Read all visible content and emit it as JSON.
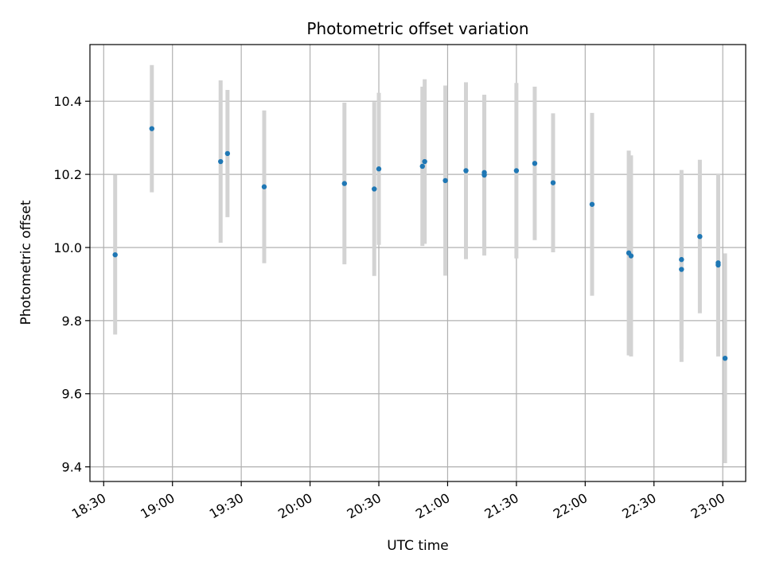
{
  "chart_data": {
    "type": "scatter",
    "title": "Photometric offset variation",
    "xlabel": "UTC time",
    "ylabel": "Photometric offset",
    "x_unit": "minutes",
    "xlim": [
      "18:24",
      "23:10"
    ],
    "ylim": [
      9.36,
      10.555
    ],
    "x_ticks": [
      "18:30",
      "19:00",
      "19:30",
      "20:00",
      "20:30",
      "21:00",
      "21:30",
      "22:00",
      "22:30",
      "23:00"
    ],
    "y_ticks": [
      9.4,
      9.6,
      9.8,
      10.0,
      10.2,
      10.4
    ],
    "y_tick_labels": [
      "9.4",
      "9.6",
      "9.8",
      "10.0",
      "10.2",
      "10.4"
    ],
    "grid": true,
    "point_color": "#1f77b4",
    "errorbar_color": "#d3d3d3",
    "points": [
      {
        "x": "18:35",
        "y": 9.98,
        "yerr": 0.218
      },
      {
        "x": "18:51",
        "y": 10.325,
        "yerr": 0.174
      },
      {
        "x": "19:21",
        "y": 10.235,
        "yerr": 0.222
      },
      {
        "x": "19:24",
        "y": 10.257,
        "yerr": 0.174
      },
      {
        "x": "19:40",
        "y": 10.166,
        "yerr": 0.209
      },
      {
        "x": "20:15",
        "y": 10.175,
        "yerr": 0.221
      },
      {
        "x": "20:28",
        "y": 10.16,
        "yerr": 0.238
      },
      {
        "x": "20:30",
        "y": 10.215,
        "yerr": 0.208
      },
      {
        "x": "20:49",
        "y": 10.222,
        "yerr": 0.218
      },
      {
        "x": "20:50",
        "y": 10.235,
        "yerr": 0.225
      },
      {
        "x": "20:59",
        "y": 10.183,
        "yerr": 0.26
      },
      {
        "x": "21:08",
        "y": 10.21,
        "yerr": 0.242
      },
      {
        "x": "21:16",
        "y": 10.205,
        "yerr": 0.21
      },
      {
        "x": "21:16",
        "y": 10.198,
        "yerr": 0.22
      },
      {
        "x": "21:30",
        "y": 10.21,
        "yerr": 0.24
      },
      {
        "x": "21:38",
        "y": 10.23,
        "yerr": 0.21
      },
      {
        "x": "21:46",
        "y": 10.177,
        "yerr": 0.19
      },
      {
        "x": "22:03",
        "y": 10.118,
        "yerr": 0.25
      },
      {
        "x": "22:19",
        "y": 9.985,
        "yerr": 0.28
      },
      {
        "x": "22:20",
        "y": 9.977,
        "yerr": 0.275
      },
      {
        "x": "22:42",
        "y": 9.967,
        "yerr": 0.245
      },
      {
        "x": "22:42",
        "y": 9.94,
        "yerr": 0.253
      },
      {
        "x": "22:50",
        "y": 10.03,
        "yerr": 0.21
      },
      {
        "x": "22:58",
        "y": 9.958,
        "yerr": 0.232
      },
      {
        "x": "22:58",
        "y": 9.952,
        "yerr": 0.25
      },
      {
        "x": "23:01",
        "y": 9.697,
        "yerr": 0.287
      }
    ]
  }
}
